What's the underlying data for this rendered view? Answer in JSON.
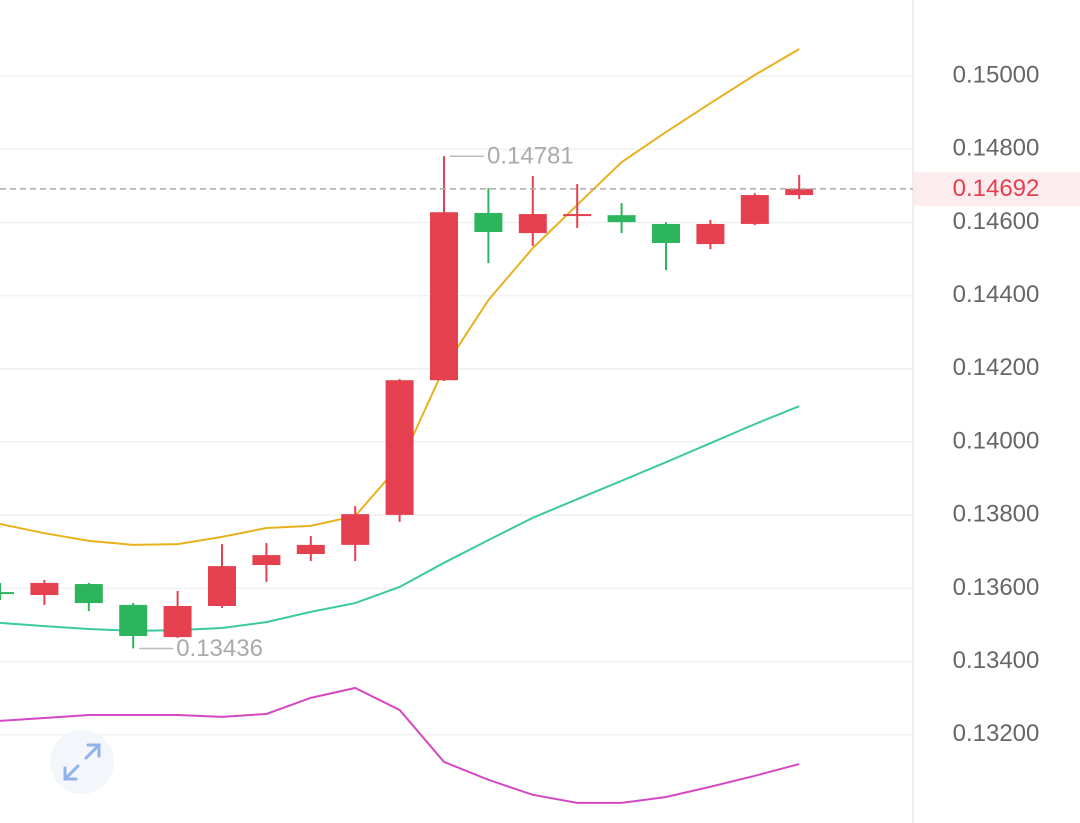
{
  "chart_data": {
    "type": "candlestick",
    "open": [
      0.1359,
      0.13582,
      0.13612,
      0.13555,
      0.13467,
      0.13552,
      0.13664,
      0.13694,
      0.13719,
      0.13801,
      0.14169,
      0.14626,
      0.14571,
      0.1462,
      0.1462,
      0.14596,
      0.14541,
      0.14596,
      0.14675
    ],
    "high": [
      0.13615,
      0.13623,
      0.13615,
      0.1356,
      0.13593,
      0.13721,
      0.13724,
      0.13743,
      0.13825,
      0.14172,
      0.14781,
      0.14694,
      0.14727,
      0.14705,
      0.14653,
      0.14601,
      0.14607,
      0.1468,
      0.1473
    ],
    "low": [
      0.13568,
      0.13555,
      0.13538,
      0.13436,
      0.13465,
      0.13547,
      0.13618,
      0.13675,
      0.13675,
      0.13782,
      0.14167,
      0.14489,
      0.14536,
      0.14585,
      0.14571,
      0.1447,
      0.14527,
      0.14593,
      0.14664
    ],
    "close": [
      0.13585,
      0.13615,
      0.1356,
      0.1347,
      0.13552,
      0.13661,
      0.13691,
      0.13719,
      0.13803,
      0.14169,
      0.14628,
      0.14574,
      0.14623,
      0.14623,
      0.14601,
      0.14544,
      0.14596,
      0.14675,
      0.14692
    ],
    "up_color": "#e5404f",
    "down_color": "#2db55d",
    "overlays": [
      {
        "color": "#e8b21e",
        "values": [
          0.13776,
          0.13751,
          0.1373,
          0.13719,
          0.13721,
          0.13741,
          0.13765,
          0.13771,
          0.13798,
          0.13937,
          0.14202,
          0.14388,
          0.1453,
          0.14648,
          0.14765,
          0.14847,
          0.14926,
          0.15003,
          0.15074
        ]
      },
      {
        "color": "#3cc9a0",
        "values": [
          0.13506,
          0.13497,
          0.13489,
          0.13484,
          0.13486,
          0.13492,
          0.13508,
          0.13536,
          0.1356,
          0.13604,
          0.1367,
          0.13732,
          0.13793,
          0.13844,
          0.13894,
          0.13945,
          0.13997,
          0.14049,
          0.14098
        ]
      },
      {
        "color": "#d548c4",
        "values": [
          0.13238,
          0.13246,
          0.13254,
          0.13254,
          0.13254,
          0.13249,
          0.13257,
          0.13301,
          0.13328,
          0.13268,
          0.13126,
          0.13077,
          0.13036,
          0.13014,
          0.13014,
          0.1303,
          0.13058,
          0.13088,
          0.1312
        ]
      }
    ],
    "ylim": [
      0.12959,
      0.15208
    ],
    "yticks": [
      {
        "value": 0.132,
        "label": "0.13200"
      },
      {
        "value": 0.134,
        "label": "0.13400"
      },
      {
        "value": 0.136,
        "label": "0.13600"
      },
      {
        "value": 0.138,
        "label": "0.13800"
      },
      {
        "value": 0.14,
        "label": "0.14000"
      },
      {
        "value": 0.142,
        "label": "0.14200"
      },
      {
        "value": 0.144,
        "label": "0.14400"
      },
      {
        "value": 0.146,
        "label": "0.14600"
      },
      {
        "value": 0.148,
        "label": "0.14800"
      },
      {
        "value": 0.15,
        "label": "0.15000"
      }
    ],
    "grid": true
  }
}
